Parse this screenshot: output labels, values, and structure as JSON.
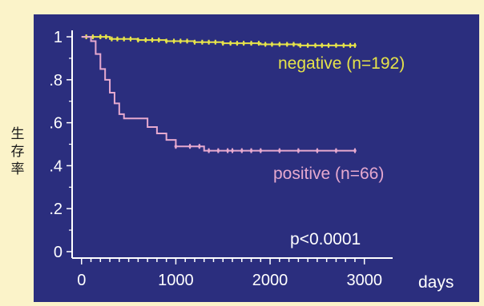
{
  "chart_data": {
    "type": "line",
    "subtype": "kaplan-meier",
    "title": "",
    "ylabel_chars": [
      "生",
      "存",
      "率"
    ],
    "xlabel": "days",
    "x_ticks": [
      0,
      1000,
      2000,
      3000
    ],
    "x_tick_labels": [
      "0",
      "1000",
      "2000",
      "3000"
    ],
    "y_ticks": [
      0,
      0.2,
      0.4,
      0.6,
      0.8,
      1.0
    ],
    "y_tick_labels": [
      "0",
      ".2",
      ".4",
      ".6",
      ".8",
      "1"
    ],
    "xlim": [
      -100,
      3300
    ],
    "ylim": [
      -0.03,
      1.03
    ],
    "grid": false,
    "legend": "inline labels",
    "annotation": "p<0.0001",
    "colors": {
      "background": "#2b2e7e",
      "page": "#fbf3c9",
      "axis": "#ffffff",
      "negative": "#e6e34a",
      "positive": "#e6a9cf"
    },
    "series": [
      {
        "name": "negative",
        "label": "negative (n=192)",
        "color": "#e6e34a",
        "x": [
          0,
          100,
          300,
          600,
          900,
          1200,
          1500,
          1900,
          2300,
          2700,
          2900
        ],
        "y": [
          1.0,
          1.0,
          0.99,
          0.985,
          0.98,
          0.975,
          0.97,
          0.965,
          0.96,
          0.96,
          0.96
        ],
        "censor_x": [
          50,
          120,
          200,
          260,
          320,
          380,
          450,
          520,
          600,
          680,
          750,
          820,
          900,
          980,
          1050,
          1120,
          1200,
          1280,
          1350,
          1420,
          1500,
          1580,
          1650,
          1720,
          1800,
          1880,
          1950,
          2020,
          2100,
          2180,
          2250,
          2320,
          2400,
          2480,
          2550,
          2620,
          2700,
          2780,
          2850,
          2900
        ]
      },
      {
        "name": "positive",
        "label": "positive (n=66)",
        "color": "#e6a9cf",
        "x": [
          0,
          100,
          150,
          200,
          250,
          300,
          350,
          400,
          450,
          550,
          700,
          800,
          900,
          1000,
          1100,
          1300,
          1600,
          2000,
          2400,
          2900
        ],
        "y": [
          1.0,
          0.98,
          0.92,
          0.85,
          0.8,
          0.74,
          0.69,
          0.64,
          0.62,
          0.62,
          0.58,
          0.55,
          0.52,
          0.49,
          0.49,
          0.47,
          0.47,
          0.47,
          0.47,
          0.47
        ],
        "censor_x": [
          1000,
          1150,
          1250,
          1350,
          1450,
          1550,
          1600,
          1700,
          1800,
          1900,
          2100,
          2300,
          2500,
          2700,
          2900
        ]
      }
    ]
  }
}
